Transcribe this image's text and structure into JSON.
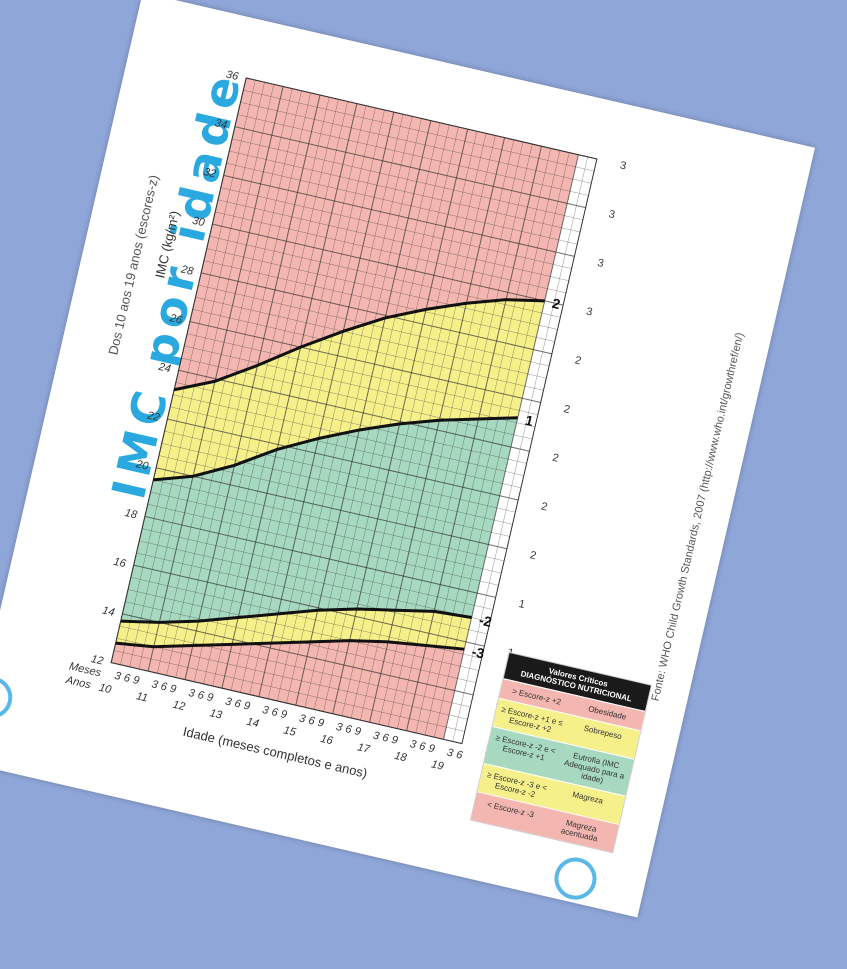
{
  "title": "IMC por idade",
  "subtitle": "Dos 10 aos 19 anos (escores-z)",
  "source": "Fonte: WHO Child Growth Standards, 2007 (http://www.who.int/growthref/en/)",
  "legend": {
    "title1": "Valores Críticos",
    "title2": "DIAGNÓSTICO NUTRICIONAL",
    "rows": [
      {
        "range": "> Escore-z +2",
        "dx": "Obesidade",
        "color": "#f4b6b0"
      },
      {
        "range": "≥ Escore-z +1 e ≤ Escore-z +2",
        "dx": "Sobrepeso",
        "color": "#f6f08a"
      },
      {
        "range": "≥ Escore-z -2 e < Escore-z +1",
        "dx": "Eutrofia (IMC Adequado para a idade)",
        "color": "#a6d9c0"
      },
      {
        "range": "≥ Escore-z -3 e < Escore-z -2",
        "dx": "Magreza",
        "color": "#f6f08a"
      },
      {
        "range": "< Escore-z -3",
        "dx": "Magreza acentuada",
        "color": "#f4b6b0"
      }
    ]
  },
  "chart_data": {
    "type": "line",
    "title": "IMC por idade",
    "xlabel": "Idade (meses completos e anos)",
    "ylabel": "IMC (kg/m²)",
    "x_row_labels": [
      "Meses",
      "Anos"
    ],
    "years": [
      "10",
      "11",
      "12",
      "13",
      "14",
      "15",
      "16",
      "17",
      "18",
      "19"
    ],
    "months": [
      "3",
      "6",
      "9"
    ],
    "xlim": [
      10,
      19.5
    ],
    "ylim": [
      12,
      36
    ],
    "yticks": [
      12,
      14,
      16,
      18,
      20,
      22,
      24,
      26,
      28,
      30,
      32,
      34,
      36
    ],
    "zones": [
      {
        "from": "z2",
        "to": "top",
        "color": "#f4b6b0"
      },
      {
        "from": "z1",
        "to": "z2",
        "color": "#f6f08a"
      },
      {
        "from": "zm2",
        "to": "z1",
        "color": "#a6d9c0"
      },
      {
        "from": "zm3",
        "to": "zm2",
        "color": "#f6f08a"
      },
      {
        "from": "bottom",
        "to": "zm3",
        "color": "#f4b6b0"
      }
    ],
    "series": [
      {
        "name": "2",
        "key": "z2",
        "x": [
          10,
          11,
          12,
          13,
          14,
          15,
          16,
          17,
          18,
          19
        ],
        "y": [
          23.2,
          23.9,
          24.9,
          26.0,
          27.0,
          27.9,
          28.6,
          29.2,
          29.7,
          30.0
        ]
      },
      {
        "name": "1",
        "key": "z1",
        "x": [
          10,
          11,
          12,
          13,
          14,
          15,
          16,
          17,
          18,
          19
        ],
        "y": [
          19.5,
          20.0,
          20.8,
          21.8,
          22.6,
          23.3,
          23.9,
          24.4,
          24.8,
          25.2
        ]
      },
      {
        "name": "-2",
        "key": "zm2",
        "x": [
          10,
          11,
          12,
          13,
          14,
          15,
          16,
          17,
          18,
          19
        ],
        "y": [
          13.7,
          14.0,
          14.4,
          14.9,
          15.4,
          15.9,
          16.3,
          16.6,
          16.9,
          17.0
        ]
      },
      {
        "name": "-3",
        "key": "zm3",
        "x": [
          10,
          11,
          12,
          13,
          14,
          15,
          16,
          17,
          18,
          19
        ],
        "y": [
          12.8,
          13.0,
          13.4,
          13.8,
          14.2,
          14.6,
          15.0,
          15.3,
          15.5,
          15.7
        ]
      }
    ]
  }
}
